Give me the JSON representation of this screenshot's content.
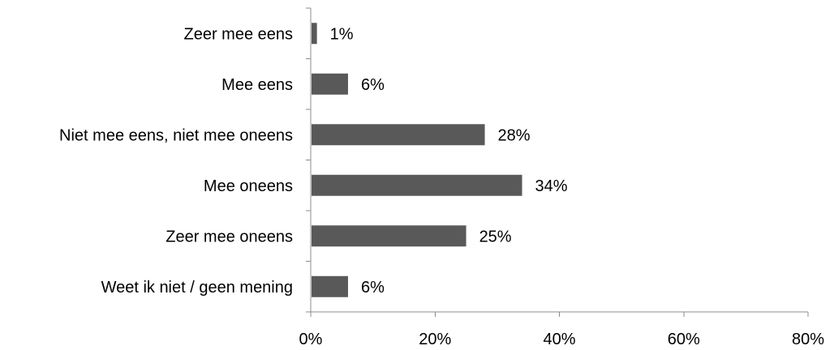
{
  "chart_data": {
    "type": "bar",
    "orientation": "horizontal",
    "title": "",
    "xlabel": "",
    "ylabel": "",
    "categories": [
      "Zeer mee eens",
      "Mee eens",
      "Niet mee eens, niet mee oneens",
      "Mee oneens",
      "Zeer mee oneens",
      "Weet ik niet / geen mening"
    ],
    "values": [
      1,
      6,
      28,
      34,
      25,
      6
    ],
    "value_labels": [
      "1%",
      "6%",
      "28%",
      "34%",
      "25%",
      "6%"
    ],
    "xlim": [
      0,
      80
    ],
    "xticks": [
      0,
      20,
      40,
      60,
      80
    ],
    "xtick_labels": [
      "0%",
      "20%",
      "40%",
      "60%",
      "80%"
    ],
    "grid": false,
    "legend": "none",
    "bar_color": "#595959"
  }
}
